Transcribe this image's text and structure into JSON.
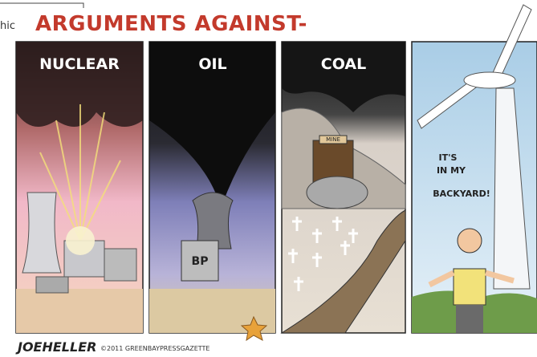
{
  "corner_text": "hic",
  "title": "ARGUMENTS AGAINST-",
  "panels": [
    {
      "label": "NUCLEAR"
    },
    {
      "label": "OIL",
      "sign": "BP"
    },
    {
      "label": "COAL",
      "sign": "MINE"
    },
    {
      "speech": [
        "IT'S",
        "IN MY",
        "BACKYARD!"
      ]
    }
  ],
  "signature": "JOEHELLER",
  "credit": "©2011 GREENBAYPRESSGAZETTE"
}
